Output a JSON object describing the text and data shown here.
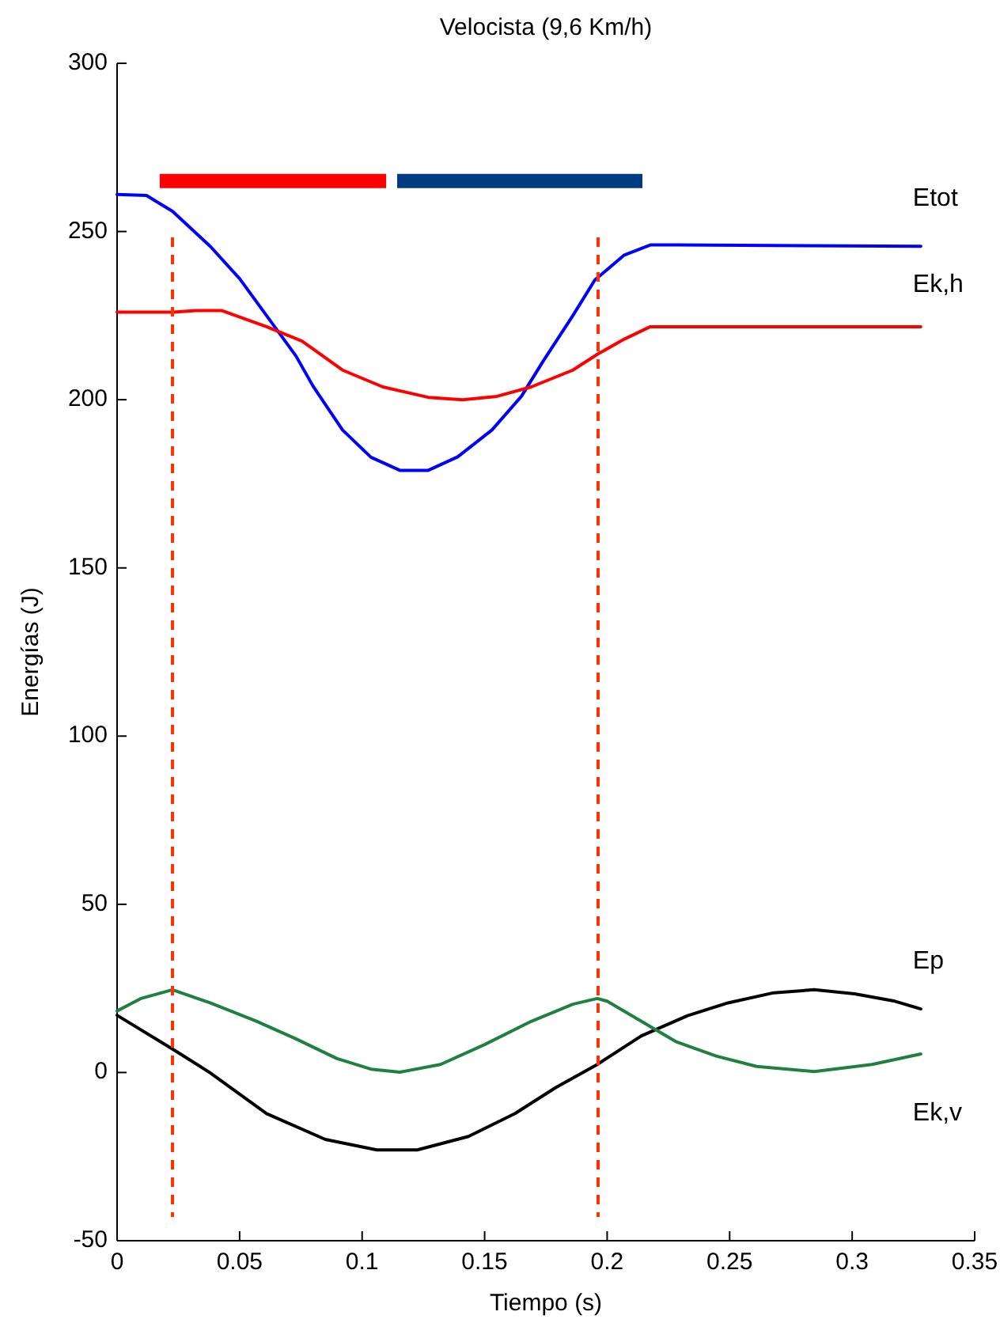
{
  "chart_data": {
    "type": "line",
    "title": "Velocista (9,6 Km/h)",
    "xlabel": "Tiempo (s)",
    "ylabel": "Energías (J)",
    "xlim": [
      0,
      0.35
    ],
    "xticks": [
      0,
      0.05,
      0.1,
      0.15,
      0.2,
      0.25,
      0.3,
      0.35
    ],
    "ylim": [
      -50,
      300
    ],
    "yticks": [
      -50,
      0,
      50,
      100,
      150,
      200,
      250,
      300
    ],
    "grid": false,
    "marker": "none",
    "line_style": "solid",
    "series": [
      {
        "name": "Etot",
        "color": "#0000ff",
        "x": [
          0,
          0.012,
          0.0226,
          0.038,
          0.05,
          0.061,
          0.073,
          0.08,
          0.092,
          0.1036,
          0.1154,
          0.127,
          0.139,
          0.153,
          0.165,
          0.174,
          0.186,
          0.195,
          0.207,
          0.2176,
          0.228,
          0.328
        ],
        "values": [
          261,
          260.7,
          256,
          245.6,
          236,
          225,
          213,
          204,
          191,
          182.9,
          179,
          179,
          183,
          191,
          201,
          211.6,
          225,
          235.6,
          243,
          246,
          246,
          245.6
        ]
      },
      {
        "name": "Ek,h",
        "color": "#ff0000",
        "x": [
          0,
          0.023,
          0.032,
          0.0426,
          0.061,
          0.0755,
          0.092,
          0.1085,
          0.127,
          0.141,
          0.155,
          0.169,
          0.186,
          0.196,
          0.207,
          0.2176,
          0.328
        ],
        "values": [
          226,
          226,
          226.5,
          226.5,
          221.7,
          217.4,
          208.8,
          203.8,
          200.7,
          200,
          201,
          203.8,
          208.8,
          213.5,
          218,
          221.7,
          221.7
        ]
      },
      {
        "name": "Ep",
        "color": "#000000",
        "x": [
          0,
          0.0226,
          0.038,
          0.061,
          0.085,
          0.106,
          0.1225,
          0.1434,
          0.1624,
          0.179,
          0.196,
          0.214,
          0.2328,
          0.2493,
          0.268,
          0.2845,
          0.301,
          0.3174,
          0.328
        ],
        "values": [
          17,
          7,
          -0.1,
          -12.2,
          -19.9,
          -23,
          -23,
          -19,
          -12.2,
          -4.5,
          2.4,
          10.9,
          16.9,
          20.7,
          23.7,
          24.6,
          23.4,
          21.2,
          18.9
        ]
      },
      {
        "name": "Ek,v",
        "color": "#208040",
        "x": [
          0,
          0.0097,
          0.0226,
          0.038,
          0.0567,
          0.073,
          0.0896,
          0.1036,
          0.1154,
          0.132,
          0.15,
          0.169,
          0.186,
          0.196,
          0.2,
          0.214,
          0.228,
          0.2445,
          0.261,
          0.2845,
          0.3081,
          0.328
        ],
        "values": [
          18.3,
          22,
          24.6,
          20.7,
          15.3,
          10,
          4.2,
          1,
          0.1,
          2.4,
          8.3,
          15.2,
          20.3,
          22,
          21.2,
          15.2,
          9.2,
          4.9,
          1.8,
          0.3,
          2.4,
          5.5
        ]
      },
      {
        "color": "#ff0000",
        "x": [
          0.0174,
          0.1098
        ],
        "values": [
          265,
          265
        ]
      },
      {
        "color": "#003a80",
        "x": [
          0.1143,
          0.2144
        ],
        "values": [
          265,
          265
        ]
      }
    ],
    "ref_lines": [
      {
        "axis": "x",
        "value": 0.0226,
        "color": "#ff3300",
        "line_style": "dashed"
      },
      {
        "axis": "x",
        "value": 0.1963,
        "color": "#ff3300",
        "line_style": "dashed"
      }
    ]
  }
}
